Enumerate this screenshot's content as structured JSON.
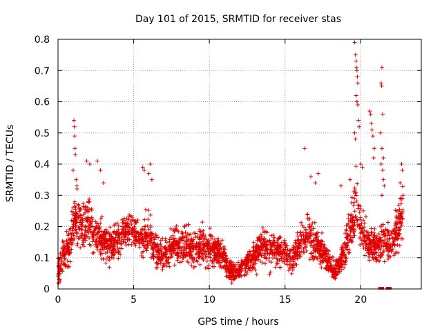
{
  "chart_data": {
    "type": "scatter",
    "title": "Day 101 of 2015, SRMTID for receiver stas",
    "xlabel": "GPS time / hours",
    "ylabel": "SRMTID / TECUs",
    "xlim": [
      0,
      24
    ],
    "ylim": [
      0,
      0.8
    ],
    "x_ticks": [
      0,
      5,
      10,
      15,
      20
    ],
    "y_ticks": [
      0,
      0.1,
      0.2,
      0.3,
      0.4,
      0.5,
      0.6,
      0.7,
      0.8
    ],
    "x_tick_labels": [
      "0",
      "5",
      "10",
      "15",
      "20"
    ],
    "y_tick_labels": [
      "0",
      "0.1",
      "0.2",
      "0.3",
      "0.4",
      "0.5",
      "0.6",
      "0.7",
      "0.8"
    ],
    "grid": true,
    "marker": "+",
    "color": "#e00000",
    "series": [
      {
        "name": "SRMTID",
        "envelope": [
          [
            0.0,
            0.05,
            0.05
          ],
          [
            0.2,
            0.08,
            0.05
          ],
          [
            0.5,
            0.12,
            0.06
          ],
          [
            0.8,
            0.15,
            0.07
          ],
          [
            1.0,
            0.2,
            0.08
          ],
          [
            1.2,
            0.24,
            0.1
          ],
          [
            1.5,
            0.2,
            0.08
          ],
          [
            2.0,
            0.22,
            0.08
          ],
          [
            2.5,
            0.18,
            0.07
          ],
          [
            3.0,
            0.15,
            0.06
          ],
          [
            3.5,
            0.14,
            0.06
          ],
          [
            4.0,
            0.16,
            0.06
          ],
          [
            4.5,
            0.19,
            0.05
          ],
          [
            5.0,
            0.19,
            0.05
          ],
          [
            5.5,
            0.16,
            0.06
          ],
          [
            6.0,
            0.18,
            0.07
          ],
          [
            6.5,
            0.12,
            0.05
          ],
          [
            7.0,
            0.11,
            0.05
          ],
          [
            7.5,
            0.13,
            0.05
          ],
          [
            8.0,
            0.14,
            0.06
          ],
          [
            8.5,
            0.15,
            0.06
          ],
          [
            9.0,
            0.13,
            0.06
          ],
          [
            9.5,
            0.14,
            0.06
          ],
          [
            10.0,
            0.13,
            0.06
          ],
          [
            10.5,
            0.12,
            0.05
          ],
          [
            11.0,
            0.1,
            0.05
          ],
          [
            11.3,
            0.06,
            0.03
          ],
          [
            11.7,
            0.05,
            0.03
          ],
          [
            12.0,
            0.06,
            0.03
          ],
          [
            12.5,
            0.08,
            0.04
          ],
          [
            13.0,
            0.11,
            0.05
          ],
          [
            13.5,
            0.14,
            0.06
          ],
          [
            14.0,
            0.13,
            0.06
          ],
          [
            14.5,
            0.12,
            0.05
          ],
          [
            15.0,
            0.12,
            0.05
          ],
          [
            15.5,
            0.09,
            0.04
          ],
          [
            16.0,
            0.15,
            0.06
          ],
          [
            16.5,
            0.17,
            0.07
          ],
          [
            17.0,
            0.15,
            0.06
          ],
          [
            17.5,
            0.12,
            0.05
          ],
          [
            18.0,
            0.08,
            0.04
          ],
          [
            18.3,
            0.05,
            0.03
          ],
          [
            18.6,
            0.08,
            0.04
          ],
          [
            19.0,
            0.13,
            0.06
          ],
          [
            19.4,
            0.2,
            0.08
          ],
          [
            19.7,
            0.28,
            0.1
          ],
          [
            20.0,
            0.2,
            0.08
          ],
          [
            20.5,
            0.14,
            0.06
          ],
          [
            21.0,
            0.13,
            0.06
          ],
          [
            21.5,
            0.16,
            0.07
          ],
          [
            22.0,
            0.14,
            0.06
          ],
          [
            22.5,
            0.2,
            0.08
          ],
          [
            22.8,
            0.25,
            0.08
          ]
        ],
        "highlights": [
          [
            0.05,
            0.02
          ],
          [
            0.1,
            0.03
          ],
          [
            0.15,
            0.025
          ],
          [
            1.05,
            0.54
          ],
          [
            1.08,
            0.52
          ],
          [
            1.1,
            0.49
          ],
          [
            1.12,
            0.45
          ],
          [
            1.15,
            0.43
          ],
          [
            1.0,
            0.38
          ],
          [
            1.2,
            0.35
          ],
          [
            1.25,
            0.33
          ],
          [
            1.9,
            0.41
          ],
          [
            2.1,
            0.4
          ],
          [
            2.6,
            0.41
          ],
          [
            2.8,
            0.38
          ],
          [
            3.0,
            0.34
          ],
          [
            5.6,
            0.39
          ],
          [
            5.7,
            0.38
          ],
          [
            6.1,
            0.4
          ],
          [
            6.0,
            0.37
          ],
          [
            6.2,
            0.35
          ],
          [
            16.3,
            0.45
          ],
          [
            16.7,
            0.36
          ],
          [
            17.2,
            0.37
          ],
          [
            17.0,
            0.34
          ],
          [
            18.7,
            0.33
          ],
          [
            19.3,
            0.35
          ],
          [
            19.6,
            0.79
          ],
          [
            19.65,
            0.75
          ],
          [
            19.7,
            0.73
          ],
          [
            19.72,
            0.71
          ],
          [
            19.75,
            0.7
          ],
          [
            19.78,
            0.68
          ],
          [
            19.8,
            0.66
          ],
          [
            19.7,
            0.62
          ],
          [
            19.75,
            0.6
          ],
          [
            19.8,
            0.59
          ],
          [
            19.85,
            0.54
          ],
          [
            19.9,
            0.52
          ],
          [
            19.6,
            0.5
          ],
          [
            19.65,
            0.48
          ],
          [
            20.0,
            0.4
          ],
          [
            20.1,
            0.39
          ],
          [
            20.6,
            0.57
          ],
          [
            20.65,
            0.56
          ],
          [
            20.7,
            0.53
          ],
          [
            20.75,
            0.51
          ],
          [
            20.8,
            0.49
          ],
          [
            20.9,
            0.45
          ],
          [
            20.85,
            0.42
          ],
          [
            21.4,
            0.71
          ],
          [
            21.35,
            0.66
          ],
          [
            21.38,
            0.65
          ],
          [
            21.45,
            0.56
          ],
          [
            21.3,
            0.5
          ],
          [
            21.4,
            0.45
          ],
          [
            21.5,
            0.42
          ],
          [
            21.35,
            0.4
          ],
          [
            21.45,
            0.38
          ],
          [
            21.5,
            0.35
          ],
          [
            21.55,
            0.33
          ],
          [
            21.4,
            0.3
          ],
          [
            22.7,
            0.4
          ],
          [
            22.75,
            0.38
          ],
          [
            22.6,
            0.34
          ],
          [
            22.8,
            0.3
          ]
        ],
        "baseline_markers": [
          [
            21.3,
            0.0
          ],
          [
            21.4,
            0.0
          ],
          [
            21.8,
            0.0
          ],
          [
            21.9,
            0.0
          ]
        ]
      }
    ]
  }
}
